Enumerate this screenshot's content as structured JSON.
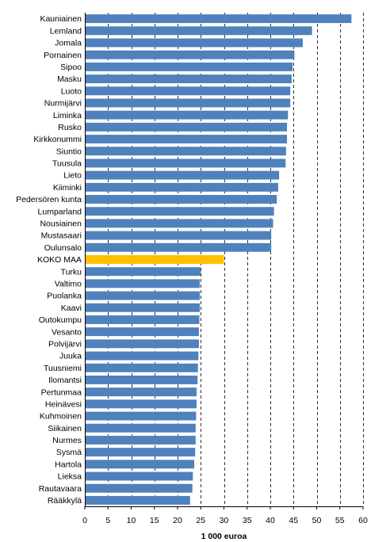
{
  "chart_data": {
    "type": "bar",
    "orientation": "horizontal",
    "xlabel": "1 000 euroa",
    "ylabel": "",
    "title": "",
    "xlim": [
      0,
      60
    ],
    "xticks": [
      0,
      5,
      10,
      15,
      20,
      25,
      30,
      35,
      40,
      45,
      50,
      55,
      60
    ],
    "grid": "vertical dashed",
    "legend": "none",
    "colors": {
      "bar": "#4f81bd",
      "highlight": "#ffc000",
      "grid": "#000000"
    },
    "highlight_category": "KOKO MAA",
    "categories": [
      "Kauniainen",
      "Lemland",
      "Jomala",
      "Pornainen",
      "Sipoo",
      "Masku",
      "Luoto",
      "Nurmijärvi",
      "Liminka",
      "Rusko",
      "Kirkkonummi",
      "Siuntio",
      "Tuusula",
      "Lieto",
      "Kiiminki",
      "Pedersören kunta",
      "Lumparland",
      "Nousiainen",
      "Mustasaari",
      "Oulunsalo",
      "KOKO MAA",
      "Turku",
      "Valtimo",
      "Puolanka",
      "Kaavi",
      "Outokumpu",
      "Vesanto",
      "Polvijärvi",
      "Juuka",
      "Tuusniemi",
      "Ilomantsi",
      "Pertunmaa",
      "Heinävesi",
      "Kuhmoinen",
      "Siikainen",
      "Nurmes",
      "Sysmä",
      "Hartola",
      "Lieksa",
      "Rautavaara",
      "Rääkkylä"
    ],
    "values": [
      57.5,
      49.0,
      47.0,
      45.2,
      44.8,
      44.6,
      44.3,
      44.3,
      43.8,
      43.6,
      43.6,
      43.4,
      43.3,
      41.9,
      41.7,
      41.4,
      40.8,
      40.6,
      40.2,
      40.2,
      30.0,
      25.0,
      24.8,
      24.8,
      24.8,
      24.7,
      24.6,
      24.6,
      24.5,
      24.4,
      24.3,
      24.1,
      24.1,
      24.0,
      23.9,
      23.9,
      23.8,
      23.6,
      23.3,
      23.2,
      22.7
    ]
  }
}
